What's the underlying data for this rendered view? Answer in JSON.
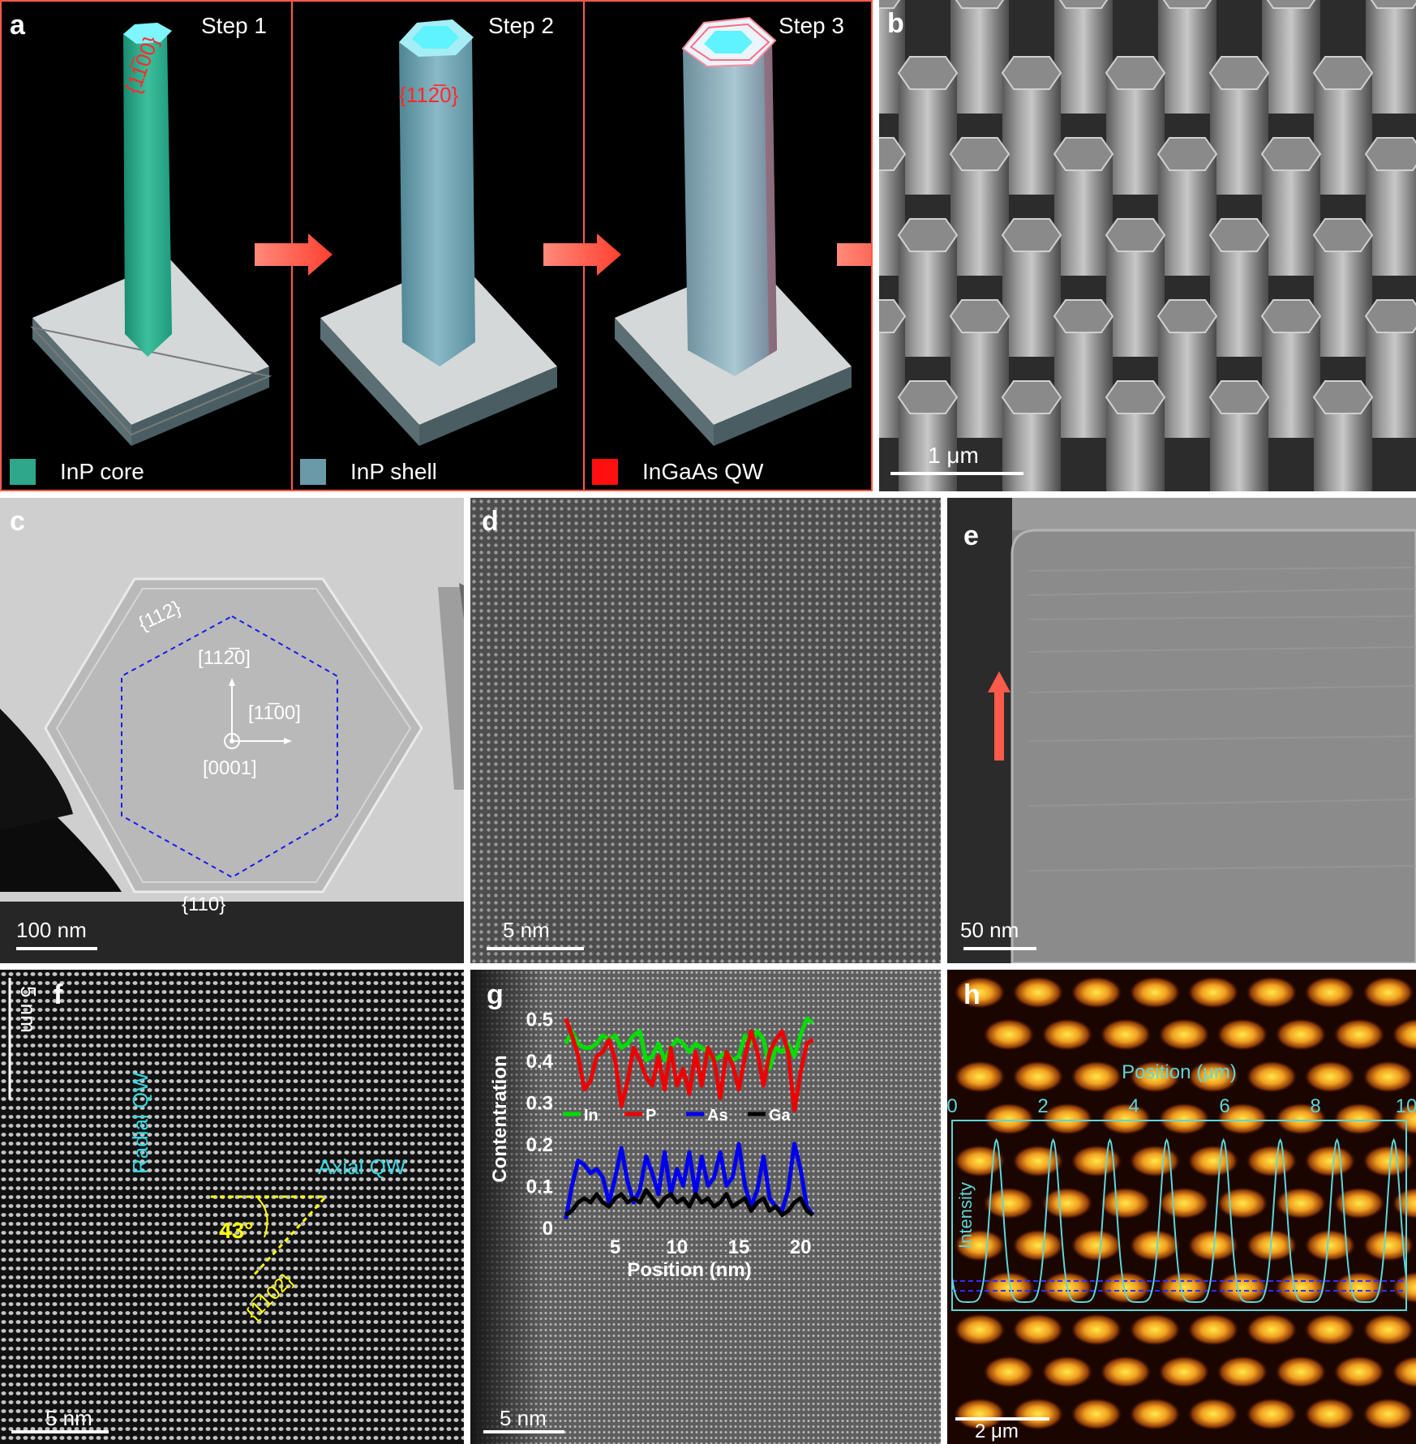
{
  "panel_a": {
    "label": "a",
    "steps": [
      "Step 1",
      "Step 2",
      "Step 3"
    ],
    "facets": [
      "{1̅0}",
      "{112̅0}"
    ],
    "facet_step1": "{11̅00}",
    "facet_step2": "{112̅0}",
    "legend": [
      {
        "text": "InP core",
        "color": "#2ea88a"
      },
      {
        "text": "InP shell",
        "color": "#6a9aa8"
      },
      {
        "text": "InGaAs QW",
        "color": "#ff1010"
      }
    ]
  },
  "panel_b": {
    "label": "b",
    "scalebar": "1 μm"
  },
  "panel_c": {
    "label": "c",
    "facet_top": "{112}",
    "facet_bottom": "{110}",
    "dir_up": "[112̅0]",
    "dir_right": "[11̅00]",
    "dir_out": "[0001]",
    "scalebar": "100 nm"
  },
  "panel_d": {
    "label": "d",
    "scalebar": "5 nm"
  },
  "panel_e": {
    "label": "e",
    "scalebar": "50 nm"
  },
  "panel_f": {
    "label": "f",
    "radial": "Radial QW",
    "axial": "Axial QW",
    "angle": "43°",
    "plane": "{1̅102}",
    "scalebar_v": "5 nm",
    "scalebar_h": "5 nm"
  },
  "panel_g": {
    "label": "g",
    "scalebar": "5 nm"
  },
  "panel_h": {
    "label": "h",
    "scalebar": "2 μm"
  },
  "chart_data": [
    {
      "type": "line",
      "xlabel": "Position (nm)",
      "ylabel": "Contentration",
      "xlim": [
        0.5,
        21.5
      ],
      "ylim": [
        0,
        0.52
      ],
      "xticks": [
        5,
        10,
        15,
        20
      ],
      "yticks": [
        0,
        0.1,
        0.2,
        0.3,
        0.4,
        0.5
      ],
      "legend_placement": "middle",
      "x": [
        1,
        1.5,
        2,
        2.5,
        3,
        3.5,
        4,
        4.5,
        5,
        5.5,
        6,
        6.5,
        7,
        7.5,
        8,
        8.5,
        9,
        9.5,
        10,
        10.5,
        11,
        11.5,
        12,
        12.5,
        13,
        13.5,
        14,
        14.5,
        15,
        15.5,
        16,
        16.5,
        17,
        17.5,
        18,
        18.5,
        19,
        19.5,
        20,
        20.5,
        21
      ],
      "series": [
        {
          "name": "In",
          "color": "#00dd00",
          "values": [
            0.44,
            0.47,
            0.44,
            0.43,
            0.43,
            0.44,
            0.46,
            0.45,
            0.46,
            0.43,
            0.44,
            0.46,
            0.47,
            0.4,
            0.41,
            0.44,
            0.4,
            0.43,
            0.45,
            0.44,
            0.42,
            0.44,
            0.43,
            0.42,
            0.4,
            0.41,
            0.42,
            0.4,
            0.41,
            0.46,
            0.44,
            0.47,
            0.45,
            0.38,
            0.43,
            0.42,
            0.44,
            0.41,
            0.46,
            0.5,
            0.49
          ]
        },
        {
          "name": "P",
          "color": "#ee0000",
          "values": [
            0.5,
            0.46,
            0.41,
            0.33,
            0.35,
            0.41,
            0.42,
            0.45,
            0.4,
            0.29,
            0.35,
            0.43,
            0.4,
            0.36,
            0.34,
            0.41,
            0.33,
            0.43,
            0.34,
            0.38,
            0.32,
            0.42,
            0.34,
            0.43,
            0.4,
            0.31,
            0.42,
            0.39,
            0.33,
            0.41,
            0.47,
            0.42,
            0.34,
            0.42,
            0.45,
            0.47,
            0.42,
            0.28,
            0.37,
            0.44,
            0.45
          ]
        },
        {
          "name": "As",
          "color": "#0000ee",
          "values": [
            0.02,
            0.1,
            0.16,
            0.15,
            0.13,
            0.14,
            0.12,
            0.06,
            0.12,
            0.19,
            0.11,
            0.06,
            0.09,
            0.17,
            0.13,
            0.08,
            0.18,
            0.08,
            0.14,
            0.1,
            0.18,
            0.08,
            0.17,
            0.1,
            0.12,
            0.18,
            0.1,
            0.12,
            0.2,
            0.1,
            0.05,
            0.09,
            0.17,
            0.07,
            0.05,
            0.04,
            0.09,
            0.2,
            0.14,
            0.05,
            0.03
          ]
        },
        {
          "name": "Ga",
          "color": "#000000",
          "values": [
            0.03,
            0.04,
            0.06,
            0.07,
            0.06,
            0.08,
            0.06,
            0.05,
            0.07,
            0.08,
            0.06,
            0.07,
            0.06,
            0.09,
            0.07,
            0.05,
            0.07,
            0.08,
            0.06,
            0.07,
            0.05,
            0.08,
            0.06,
            0.07,
            0.05,
            0.06,
            0.08,
            0.05,
            0.06,
            0.07,
            0.04,
            0.06,
            0.07,
            0.04,
            0.05,
            0.03,
            0.04,
            0.06,
            0.07,
            0.04,
            0.03
          ]
        }
      ]
    },
    {
      "type": "line",
      "xlabel": "Position (μm)",
      "ylabel": "Intensity",
      "xlim": [
        0,
        10
      ],
      "xticks": [
        0,
        2,
        4,
        6,
        8,
        10
      ],
      "series": [
        {
          "name": "",
          "color": "#5fd6d6",
          "values": "periodic peaks, period ~1.25 μm"
        }
      ]
    }
  ]
}
